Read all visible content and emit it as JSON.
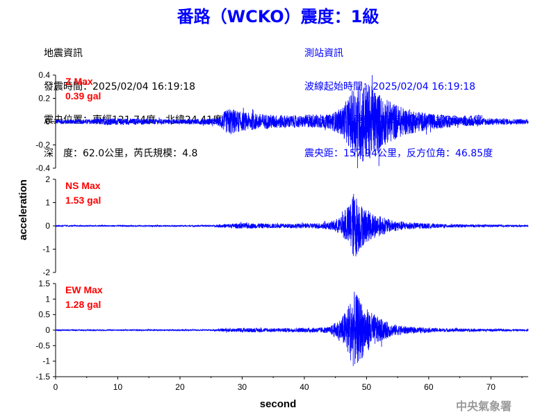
{
  "title": "番路（WCKO）震度：1級",
  "info_left": [
    "地震資訊",
    "發震時間：2025/02/04 16:19:18",
    "震央位置：東經121.74度，北緯24.41度",
    "深　度：62.0公里，芮氏規模：4.8"
  ],
  "info_right": [
    "測站資訊",
    "波線起始時間：2025/02/04 16:19:18",
    "測站位置：東經120.60度，北緯23.44度",
    "震央距：157.94公里，反方位角：46.85度"
  ],
  "watermark": "中央氣象署",
  "colors": {
    "trace": "#0000ff",
    "title": "#0000ff",
    "max_label": "#ff0000"
  },
  "chart_data": {
    "type": "line",
    "xlabel": "second",
    "ylabel": "acceleration",
    "xlim": [
      0,
      76
    ],
    "xticks": [
      0,
      10,
      20,
      30,
      40,
      50,
      60,
      70
    ],
    "panels": [
      {
        "component": "Z",
        "max_label": "Z Max",
        "max_value": "0.39 gal",
        "ylim": [
          -0.4,
          0.4
        ],
        "yticks": [
          -0.4,
          -0.2,
          0,
          0.2,
          0.4
        ],
        "ytick_labels": [
          "-0.4",
          "-0.2",
          "0",
          "0.2",
          "0.4"
        ],
        "envelope": [
          [
            0,
            0.02
          ],
          [
            5,
            0.02
          ],
          [
            8,
            0.03
          ],
          [
            20,
            0.02
          ],
          [
            26,
            0.03
          ],
          [
            27,
            0.08
          ],
          [
            28,
            0.12
          ],
          [
            30,
            0.08
          ],
          [
            35,
            0.06
          ],
          [
            40,
            0.05
          ],
          [
            44,
            0.06
          ],
          [
            46,
            0.12
          ],
          [
            47,
            0.2
          ],
          [
            48,
            0.3
          ],
          [
            49.5,
            0.37
          ],
          [
            51,
            0.3
          ],
          [
            53,
            0.2
          ],
          [
            56,
            0.12
          ],
          [
            60,
            0.07
          ],
          [
            65,
            0.04
          ],
          [
            70,
            0.03
          ],
          [
            76,
            0.02
          ]
        ]
      },
      {
        "component": "NS",
        "max_label": "NS Max",
        "max_value": "1.53 gal",
        "ylim": [
          -2,
          2
        ],
        "yticks": [
          -2,
          -1,
          0,
          1,
          2
        ],
        "ytick_labels": [
          "-2",
          "-1",
          "0",
          "1",
          "2"
        ],
        "envelope": [
          [
            0,
            0.03
          ],
          [
            25,
            0.03
          ],
          [
            27,
            0.08
          ],
          [
            30,
            0.12
          ],
          [
            35,
            0.1
          ],
          [
            40,
            0.1
          ],
          [
            44,
            0.15
          ],
          [
            46,
            0.4
          ],
          [
            47,
            0.8
          ],
          [
            48,
            1.5
          ],
          [
            49,
            1.0
          ],
          [
            50,
            0.7
          ],
          [
            52,
            0.45
          ],
          [
            54,
            0.25
          ],
          [
            57,
            0.15
          ],
          [
            62,
            0.08
          ],
          [
            70,
            0.05
          ],
          [
            76,
            0.04
          ]
        ]
      },
      {
        "component": "EW",
        "max_label": "EW Max",
        "max_value": "1.28 gal",
        "ylim": [
          -1.5,
          1.5
        ],
        "yticks": [
          -1.5,
          -1,
          -0.5,
          0,
          0.5,
          1,
          1.5
        ],
        "ytick_labels": [
          "-1.5",
          "-1",
          "-0.5",
          "0",
          "0.5",
          "1",
          "1.5"
        ],
        "envelope": [
          [
            0,
            0.02
          ],
          [
            25,
            0.02
          ],
          [
            27,
            0.05
          ],
          [
            30,
            0.07
          ],
          [
            35,
            0.06
          ],
          [
            40,
            0.07
          ],
          [
            44,
            0.1
          ],
          [
            46,
            0.4
          ],
          [
            47,
            0.8
          ],
          [
            48,
            1.25
          ],
          [
            49,
            1.0
          ],
          [
            50,
            0.7
          ],
          [
            52,
            0.4
          ],
          [
            54,
            0.2
          ],
          [
            57,
            0.1
          ],
          [
            62,
            0.06
          ],
          [
            70,
            0.04
          ],
          [
            76,
            0.03
          ]
        ]
      }
    ]
  }
}
